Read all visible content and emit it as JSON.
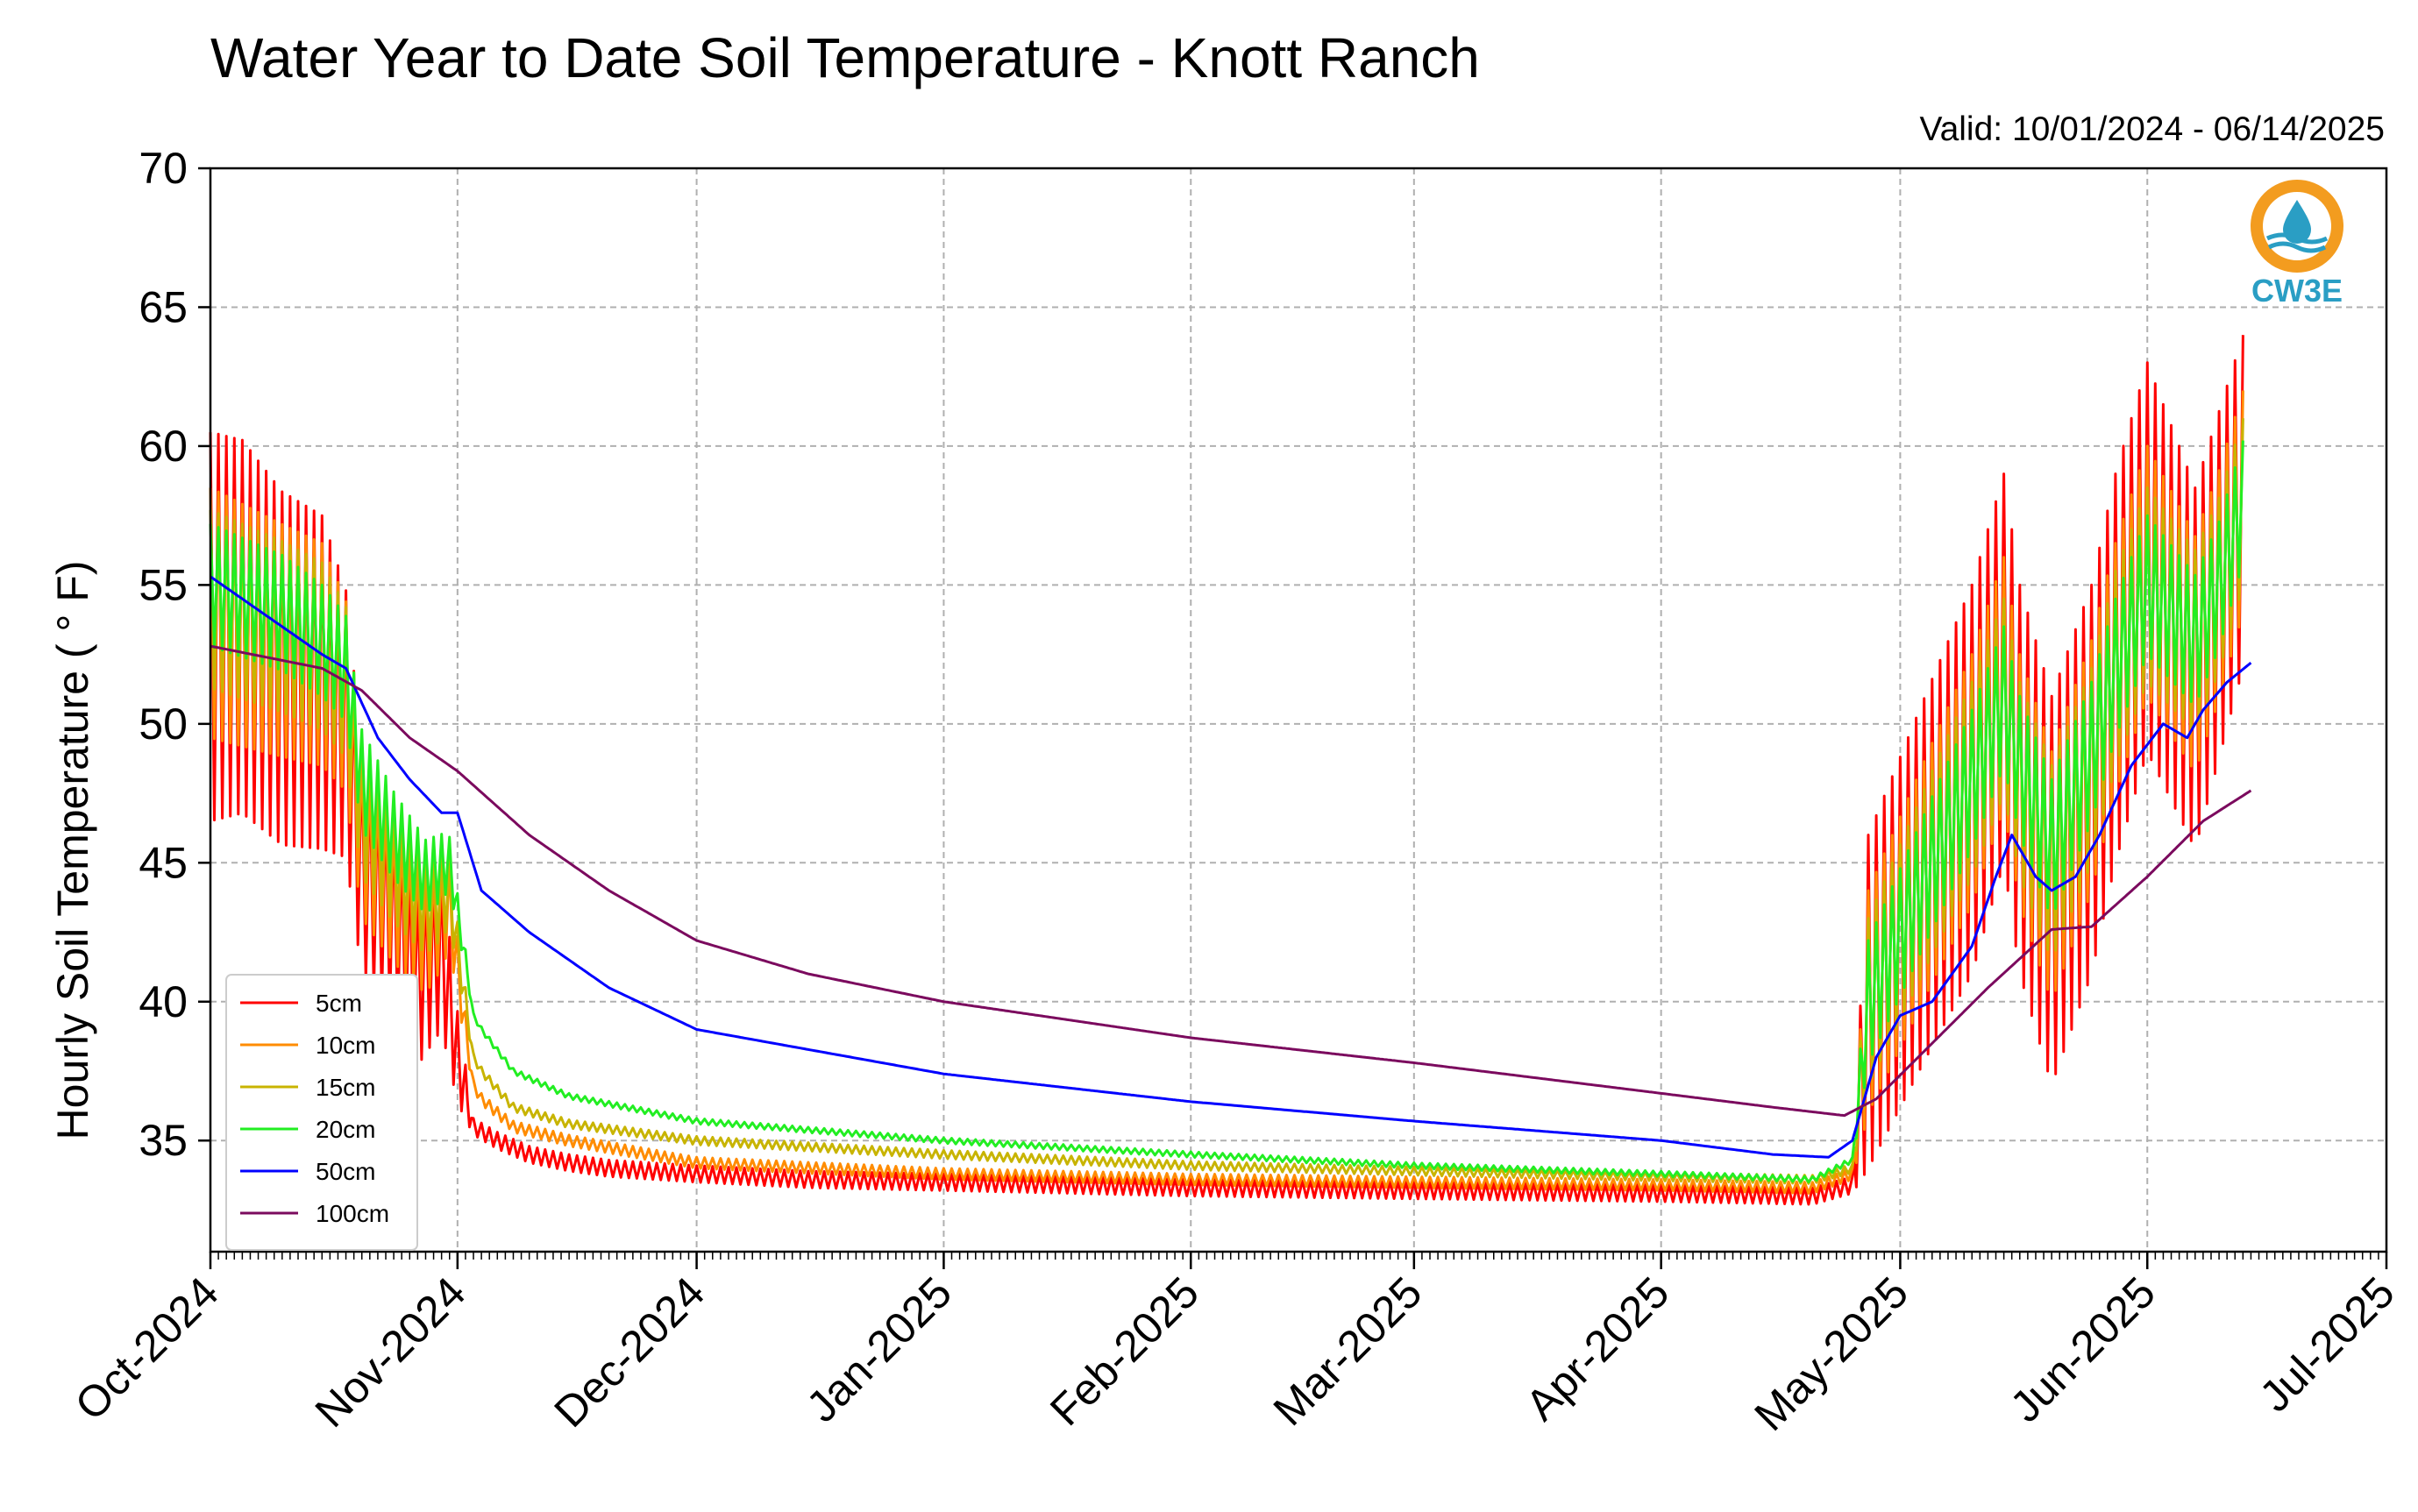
{
  "chart_data": {
    "type": "line",
    "title": "Water Year to Date Soil Temperature - Knott Ranch",
    "subtitle": "Valid: 10/01/2024 - 06/14/2025",
    "ylabel": "Hourly Soil Temperature ( ° F)",
    "xlabel": "",
    "ylim": [
      31,
      70
    ],
    "yticks": [
      35,
      40,
      45,
      50,
      55,
      60,
      65,
      70
    ],
    "xlim": [
      "2024-10-01",
      "2025-07-01"
    ],
    "xticks": [
      {
        "date": "2024-10-01",
        "label": "Oct-2024"
      },
      {
        "date": "2024-11-01",
        "label": "Nov-2024"
      },
      {
        "date": "2024-12-01",
        "label": "Dec-2024"
      },
      {
        "date": "2025-01-01",
        "label": "Jan-2025"
      },
      {
        "date": "2025-02-01",
        "label": "Feb-2025"
      },
      {
        "date": "2025-03-01",
        "label": "Mar-2025"
      },
      {
        "date": "2025-04-01",
        "label": "Apr-2025"
      },
      {
        "date": "2025-05-01",
        "label": "May-2025"
      },
      {
        "date": "2025-06-01",
        "label": "Jun-2025"
      },
      {
        "date": "2025-07-01",
        "label": "Jul-2025"
      }
    ],
    "grid": true,
    "legend_position": "lower-left",
    "series": [
      {
        "name": "5cm",
        "color": "#ff0000",
        "base": [
          [
            "2024-10-01",
            53.5
          ],
          [
            "2024-10-05",
            53.5
          ],
          [
            "2024-10-10",
            52
          ],
          [
            "2024-10-15",
            51.5
          ],
          [
            "2024-10-18",
            50
          ],
          [
            "2024-10-20",
            45
          ],
          [
            "2024-10-24",
            43
          ],
          [
            "2024-10-27",
            41
          ],
          [
            "2024-10-30",
            42
          ],
          [
            "2024-11-01",
            38
          ],
          [
            "2024-11-03",
            35.5
          ],
          [
            "2024-11-06",
            35
          ],
          [
            "2024-11-10",
            34.5
          ],
          [
            "2024-11-15",
            34.2
          ],
          [
            "2024-11-20",
            34
          ],
          [
            "2024-12-01",
            33.8
          ],
          [
            "2024-12-15",
            33.6
          ],
          [
            "2025-01-01",
            33.5
          ],
          [
            "2025-02-01",
            33.3
          ],
          [
            "2025-03-01",
            33.2
          ],
          [
            "2025-04-01",
            33.1
          ],
          [
            "2025-04-20",
            33
          ],
          [
            "2025-04-25",
            33.4
          ],
          [
            "2025-04-27",
            40
          ],
          [
            "2025-05-05",
            45
          ],
          [
            "2025-05-10",
            48
          ],
          [
            "2025-05-14",
            52
          ],
          [
            "2025-05-16",
            48
          ],
          [
            "2025-05-20",
            44
          ],
          [
            "2025-05-25",
            48
          ],
          [
            "2025-05-28",
            52
          ],
          [
            "2025-06-01",
            56
          ],
          [
            "2025-06-04",
            54
          ],
          [
            "2025-06-07",
            52
          ],
          [
            "2025-06-10",
            55
          ],
          [
            "2025-06-13",
            58
          ]
        ],
        "amp": [
          [
            "2024-10-01",
            7
          ],
          [
            "2024-10-15",
            6
          ],
          [
            "2024-10-20",
            4
          ],
          [
            "2024-10-30",
            3
          ],
          [
            "2024-11-03",
            0.3
          ],
          [
            "2025-04-25",
            0.3
          ],
          [
            "2025-04-27",
            6
          ],
          [
            "2025-05-10",
            7
          ],
          [
            "2025-05-20",
            7
          ],
          [
            "2025-06-01",
            7
          ],
          [
            "2025-06-13",
            6
          ]
        ]
      },
      {
        "name": "10cm",
        "color": "#ff8c00",
        "base": [
          [
            "2024-10-01",
            54
          ],
          [
            "2024-10-10",
            53
          ],
          [
            "2024-10-15",
            52.5
          ],
          [
            "2024-10-18",
            51
          ],
          [
            "2024-10-20",
            46
          ],
          [
            "2024-10-24",
            44
          ],
          [
            "2024-10-28",
            42.5
          ],
          [
            "2024-10-31",
            43.5
          ],
          [
            "2024-11-02",
            39
          ],
          [
            "2024-11-03",
            37
          ],
          [
            "2024-11-04",
            36.5
          ],
          [
            "2024-11-08",
            35.5
          ],
          [
            "2024-11-15",
            35
          ],
          [
            "2024-12-01",
            34.2
          ],
          [
            "2025-01-01",
            33.8
          ],
          [
            "2025-02-01",
            33.6
          ],
          [
            "2025-03-01",
            33.5
          ],
          [
            "2025-04-01",
            33.4
          ],
          [
            "2025-04-20",
            33.3
          ],
          [
            "2025-04-25",
            33.8
          ],
          [
            "2025-04-27",
            40
          ],
          [
            "2025-05-05",
            45
          ],
          [
            "2025-05-10",
            48
          ],
          [
            "2025-05-14",
            51.5
          ],
          [
            "2025-05-16",
            48
          ],
          [
            "2025-05-20",
            44.5
          ],
          [
            "2025-05-25",
            48.5
          ],
          [
            "2025-05-28",
            52
          ],
          [
            "2025-06-01",
            55.5
          ],
          [
            "2025-06-04",
            54
          ],
          [
            "2025-06-07",
            52.5
          ],
          [
            "2025-06-10",
            55
          ],
          [
            "2025-06-13",
            58
          ]
        ],
        "amp": [
          [
            "2024-10-01",
            4.5
          ],
          [
            "2024-10-15",
            4
          ],
          [
            "2024-10-20",
            3
          ],
          [
            "2024-10-30",
            2
          ],
          [
            "2024-11-03",
            0.2
          ],
          [
            "2025-04-25",
            0.2
          ],
          [
            "2025-04-27",
            4
          ],
          [
            "2025-05-10",
            4.5
          ],
          [
            "2025-06-01",
            4.5
          ],
          [
            "2025-06-13",
            4
          ]
        ]
      },
      {
        "name": "15cm",
        "color": "#c8b400",
        "base": [
          [
            "2024-10-01",
            54.5
          ],
          [
            "2024-10-10",
            53.5
          ],
          [
            "2024-10-15",
            52.8
          ],
          [
            "2024-10-18",
            51.5
          ],
          [
            "2024-10-20",
            47
          ],
          [
            "2024-10-24",
            45
          ],
          [
            "2024-10-28",
            43.5
          ],
          [
            "2024-10-31",
            44
          ],
          [
            "2024-11-02",
            40
          ],
          [
            "2024-11-03",
            38
          ],
          [
            "2024-11-04",
            37.5
          ],
          [
            "2024-11-08",
            36.2
          ],
          [
            "2024-11-15",
            35.6
          ],
          [
            "2024-12-01",
            35
          ],
          [
            "2025-01-01",
            34.5
          ],
          [
            "2025-02-01",
            34.1
          ],
          [
            "2025-03-01",
            33.9
          ],
          [
            "2025-04-01",
            33.7
          ],
          [
            "2025-04-20",
            33.6
          ],
          [
            "2025-04-25",
            34
          ],
          [
            "2025-04-27",
            40
          ],
          [
            "2025-05-05",
            45
          ],
          [
            "2025-05-10",
            48
          ],
          [
            "2025-05-14",
            51
          ],
          [
            "2025-05-16",
            48
          ],
          [
            "2025-05-20",
            45
          ],
          [
            "2025-05-25",
            48.5
          ],
          [
            "2025-05-28",
            52
          ],
          [
            "2025-06-01",
            55
          ],
          [
            "2025-06-04",
            54
          ],
          [
            "2025-06-07",
            53
          ],
          [
            "2025-06-10",
            55
          ],
          [
            "2025-06-13",
            58
          ]
        ],
        "amp": [
          [
            "2024-10-01",
            3.2
          ],
          [
            "2024-10-15",
            3
          ],
          [
            "2024-10-20",
            2.5
          ],
          [
            "2024-10-30",
            1.6
          ],
          [
            "2024-11-03",
            0.15
          ],
          [
            "2025-04-25",
            0.15
          ],
          [
            "2025-04-27",
            3
          ],
          [
            "2025-05-10",
            3.5
          ],
          [
            "2025-06-01",
            3.5
          ],
          [
            "2025-06-13",
            3
          ]
        ]
      },
      {
        "name": "20cm",
        "color": "#22ee22",
        "base": [
          [
            "2024-10-01",
            55
          ],
          [
            "2024-10-10",
            54
          ],
          [
            "2024-10-15",
            53
          ],
          [
            "2024-10-18",
            52
          ],
          [
            "2024-10-20",
            48
          ],
          [
            "2024-10-24",
            46
          ],
          [
            "2024-10-28",
            44.5
          ],
          [
            "2024-10-31",
            45
          ],
          [
            "2024-11-02",
            41.5
          ],
          [
            "2024-11-03",
            39.5
          ],
          [
            "2024-11-04",
            39
          ],
          [
            "2024-11-08",
            37.5
          ],
          [
            "2024-11-15",
            36.6
          ],
          [
            "2024-12-01",
            35.7
          ],
          [
            "2025-01-01",
            35
          ],
          [
            "2025-02-01",
            34.5
          ],
          [
            "2025-03-01",
            34.1
          ],
          [
            "2025-04-01",
            33.8
          ],
          [
            "2025-04-20",
            33.6
          ],
          [
            "2025-04-25",
            34.3
          ],
          [
            "2025-04-27",
            40
          ],
          [
            "2025-05-05",
            45
          ],
          [
            "2025-05-10",
            48
          ],
          [
            "2025-05-14",
            51
          ],
          [
            "2025-05-16",
            48.5
          ],
          [
            "2025-05-20",
            45.5
          ],
          [
            "2025-05-25",
            49
          ],
          [
            "2025-05-28",
            52
          ],
          [
            "2025-06-01",
            55
          ],
          [
            "2025-06-04",
            54
          ],
          [
            "2025-06-07",
            53
          ],
          [
            "2025-06-10",
            55
          ],
          [
            "2025-06-13",
            58
          ]
        ],
        "amp": [
          [
            "2024-10-01",
            2.2
          ],
          [
            "2024-10-15",
            2
          ],
          [
            "2024-10-20",
            1.8
          ],
          [
            "2024-10-30",
            1.2
          ],
          [
            "2024-11-03",
            0.1
          ],
          [
            "2025-04-25",
            0.1
          ],
          [
            "2025-04-27",
            2.2
          ],
          [
            "2025-05-10",
            2.5
          ],
          [
            "2025-06-01",
            2.5
          ],
          [
            "2025-06-13",
            2.2
          ]
        ]
      },
      {
        "name": "50cm",
        "color": "#0000ff",
        "base": [
          [
            "2024-10-01",
            55.3
          ],
          [
            "2024-10-05",
            54.5
          ],
          [
            "2024-10-10",
            53.5
          ],
          [
            "2024-10-15",
            52.5
          ],
          [
            "2024-10-18",
            52
          ],
          [
            "2024-10-22",
            49.5
          ],
          [
            "2024-10-26",
            48
          ],
          [
            "2024-10-30",
            46.8
          ],
          [
            "2024-11-01",
            46.8
          ],
          [
            "2024-11-04",
            44
          ],
          [
            "2024-11-10",
            42.5
          ],
          [
            "2024-11-20",
            40.5
          ],
          [
            "2024-12-01",
            39
          ],
          [
            "2025-01-01",
            37.4
          ],
          [
            "2025-02-01",
            36.4
          ],
          [
            "2025-03-01",
            35.7
          ],
          [
            "2025-04-01",
            35
          ],
          [
            "2025-04-15",
            34.5
          ],
          [
            "2025-04-22",
            34.4
          ],
          [
            "2025-04-25",
            35
          ],
          [
            "2025-04-28",
            38
          ],
          [
            "2025-05-01",
            39.5
          ],
          [
            "2025-05-05",
            40
          ],
          [
            "2025-05-10",
            42
          ],
          [
            "2025-05-13",
            44.5
          ],
          [
            "2025-05-15",
            46
          ],
          [
            "2025-05-18",
            44.5
          ],
          [
            "2025-05-20",
            44
          ],
          [
            "2025-05-23",
            44.5
          ],
          [
            "2025-05-26",
            46
          ],
          [
            "2025-05-30",
            48.5
          ],
          [
            "2025-06-03",
            50
          ],
          [
            "2025-06-06",
            49.5
          ],
          [
            "2025-06-08",
            50.5
          ],
          [
            "2025-06-11",
            51.5
          ],
          [
            "2025-06-14",
            52.2
          ]
        ],
        "amp": [
          [
            "2024-10-01",
            0
          ],
          [
            "2025-06-14",
            0
          ]
        ]
      },
      {
        "name": "100cm",
        "color": "#7b0a5e",
        "base": [
          [
            "2024-10-01",
            52.8
          ],
          [
            "2024-10-15",
            52
          ],
          [
            "2024-10-20",
            51.2
          ],
          [
            "2024-10-26",
            49.5
          ],
          [
            "2024-11-01",
            48.3
          ],
          [
            "2024-11-10",
            46
          ],
          [
            "2024-11-20",
            44
          ],
          [
            "2024-12-01",
            42.2
          ],
          [
            "2024-12-15",
            41
          ],
          [
            "2025-01-01",
            40
          ],
          [
            "2025-02-01",
            38.7
          ],
          [
            "2025-03-01",
            37.8
          ],
          [
            "2025-04-01",
            36.7
          ],
          [
            "2025-04-15",
            36.2
          ],
          [
            "2025-04-24",
            35.9
          ],
          [
            "2025-04-28",
            36.5
          ],
          [
            "2025-05-05",
            38.5
          ],
          [
            "2025-05-12",
            40.5
          ],
          [
            "2025-05-20",
            42.6
          ],
          [
            "2025-05-25",
            42.7
          ],
          [
            "2025-06-01",
            44.5
          ],
          [
            "2025-06-08",
            46.5
          ],
          [
            "2025-06-14",
            47.6
          ]
        ],
        "amp": [
          [
            "2024-10-01",
            0
          ],
          [
            "2025-06-14",
            0
          ]
        ]
      }
    ]
  },
  "logo": {
    "label": "CW3E",
    "ring_color": "#f39c1f",
    "accent_color": "#2a9ec4"
  }
}
